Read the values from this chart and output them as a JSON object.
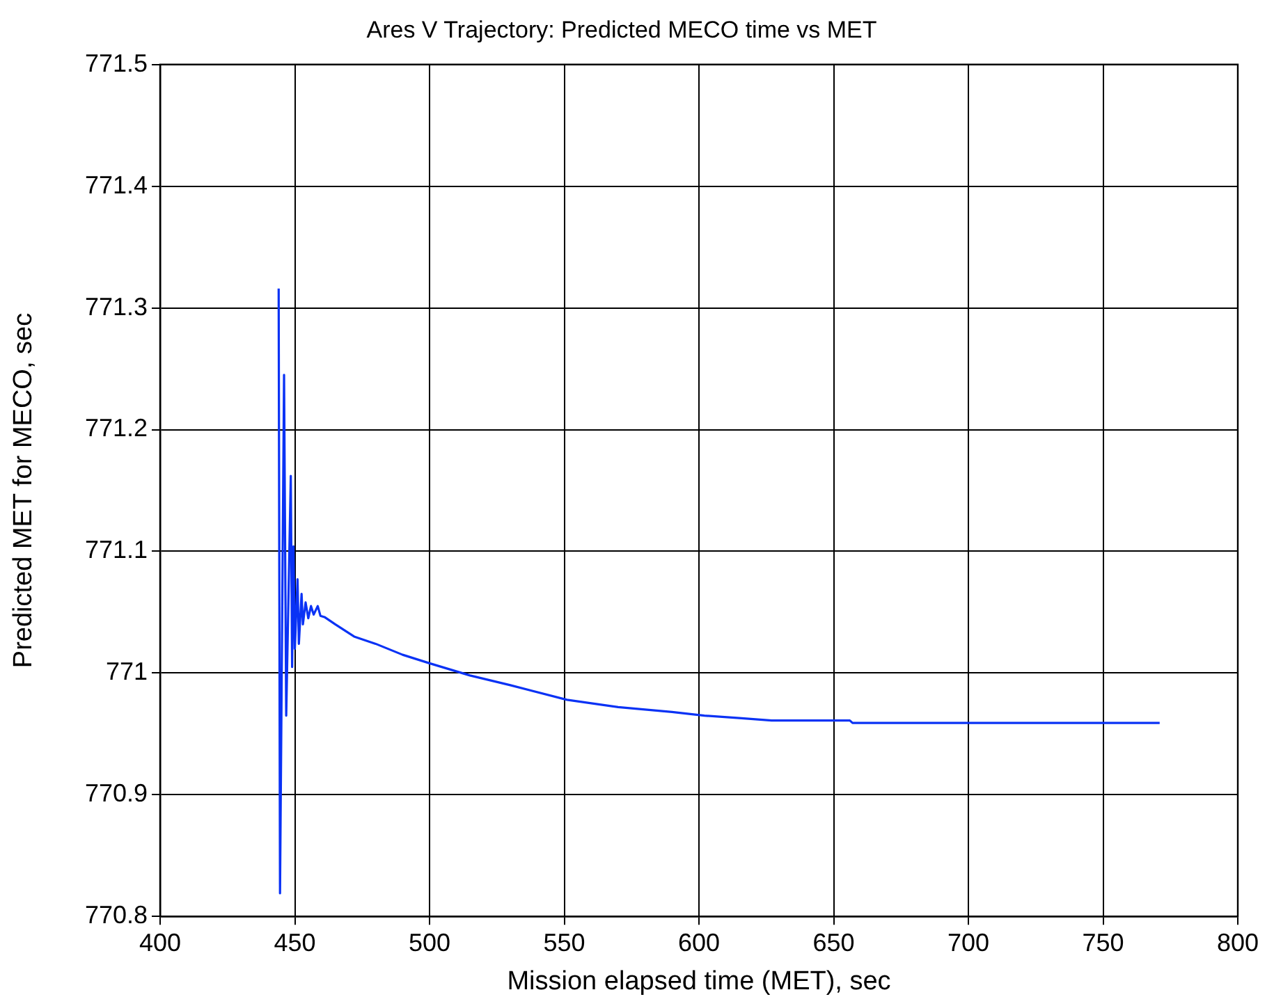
{
  "chart_data": {
    "type": "line",
    "title": "Ares V Trajectory: Predicted MECO time vs MET",
    "xlabel": "Mission elapsed time (MET), sec",
    "ylabel": "Predicted MET for MECO, sec",
    "x": [
      444,
      444.5,
      446,
      446.8,
      448.5,
      449,
      449.5,
      450,
      451,
      451.5,
      452.5,
      453,
      454,
      455,
      456,
      457,
      458.5,
      459.5,
      461,
      465,
      472,
      480,
      490,
      500,
      515,
      530,
      551,
      570,
      590,
      602,
      615,
      627,
      656,
      657,
      771
    ],
    "series": [
      {
        "color": "#0a32f5",
        "values": [
          771.316,
          770.819,
          771.245,
          770.965,
          771.162,
          771.005,
          771.104,
          771.02,
          771.077,
          771.024,
          771.065,
          771.04,
          771.058,
          771.045,
          771.055,
          771.048,
          771.055,
          771.047,
          771.046,
          771.04,
          771.03,
          771.024,
          771.015,
          771.008,
          770.998,
          770.99,
          770.978,
          770.972,
          770.968,
          770.965,
          770.963,
          770.961,
          770.961,
          770.959,
          770.959
        ]
      }
    ],
    "xlim": [
      400,
      800
    ],
    "xticks": [
      400,
      450,
      500,
      550,
      600,
      650,
      700,
      750,
      800
    ],
    "ylim": [
      770.8,
      771.5
    ],
    "yticks": [
      770.8,
      770.9,
      771,
      771.1,
      771.2,
      771.3,
      771.4,
      771.5
    ],
    "grid": true,
    "legend": false,
    "marker": "none",
    "line_style": "solid"
  }
}
